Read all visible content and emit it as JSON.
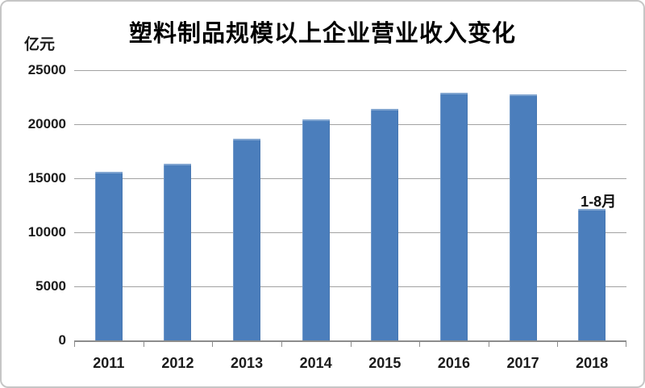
{
  "chart_data": {
    "type": "bar",
    "title": "塑料制品规模以上企业营业收入变化",
    "unit_label": "亿元",
    "categories": [
      "2011",
      "2012",
      "2013",
      "2014",
      "2015",
      "2016",
      "2017",
      "2018"
    ],
    "values": [
      15600,
      16350,
      18650,
      20450,
      21400,
      22900,
      22750,
      12150
    ],
    "annotation": {
      "text": "1-8月",
      "category": "2018"
    },
    "ylim": [
      0,
      25000
    ],
    "yticks": [
      0,
      5000,
      10000,
      15000,
      20000,
      25000
    ],
    "grid": "horizontal",
    "legend": "none",
    "colors": {
      "bar": "#4b7ebc",
      "grid": "#a2a2a2",
      "axis": "#8c8c8c",
      "text": "#1b1b1b",
      "frame_border": "#c6c6c6"
    }
  }
}
